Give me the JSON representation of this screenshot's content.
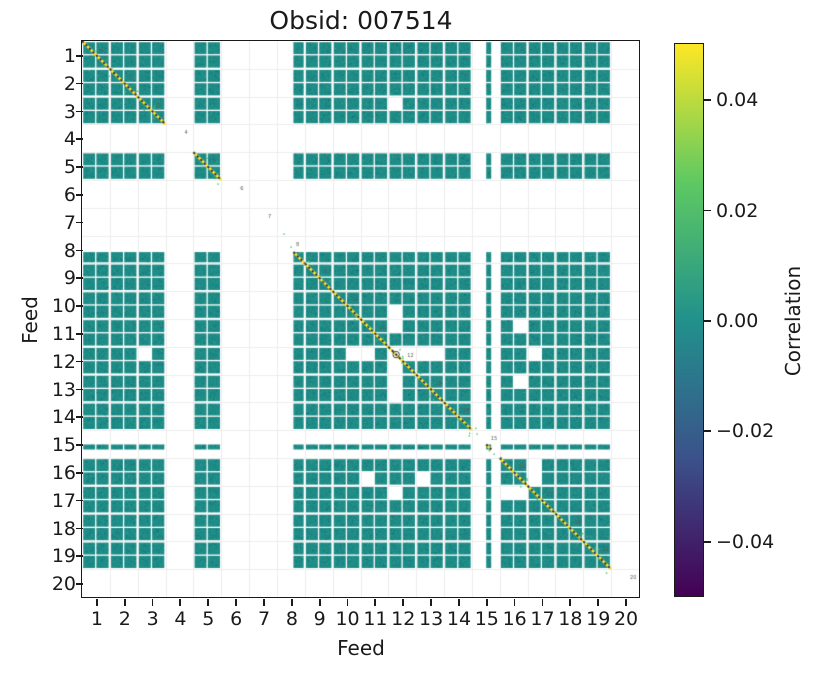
{
  "chart_data": {
    "type": "heatmap",
    "title": "Obsid: 007514",
    "xlabel": "Feed",
    "ylabel": "Feed",
    "feeds": [
      1,
      2,
      3,
      4,
      5,
      6,
      7,
      8,
      9,
      10,
      11,
      12,
      13,
      14,
      15,
      16,
      17,
      18,
      19,
      20
    ],
    "active_feeds": [
      1,
      2,
      3,
      5,
      8,
      9,
      10,
      11,
      12,
      13,
      14,
      15,
      16,
      17,
      18,
      19
    ],
    "masked_feeds": [
      4,
      6,
      7,
      20
    ],
    "partial_feeds": [
      15
    ],
    "late_start_feeds": [
      8
    ],
    "diag_labels": [
      "1",
      "2",
      "3",
      "4",
      "5",
      "6",
      "7",
      "8",
      "9",
      "10",
      "11",
      "12",
      "13",
      "14",
      "15",
      "16",
      "17",
      "18",
      "19",
      "20"
    ],
    "masked_cells": [
      [
        4,
        22
      ],
      [
        22,
        4
      ],
      [
        19,
        22
      ],
      [
        22,
        19
      ],
      [
        20,
        22
      ],
      [
        22,
        20
      ],
      [
        22,
        22
      ],
      [
        22,
        23
      ],
      [
        23,
        22
      ],
      [
        24,
        22
      ],
      [
        22,
        24
      ],
      [
        22,
        25
      ],
      [
        25,
        22
      ],
      [
        31,
        20
      ],
      [
        20,
        31
      ],
      [
        31,
        24
      ],
      [
        24,
        31
      ],
      [
        32,
        22
      ],
      [
        22,
        32
      ],
      [
        31,
        32
      ],
      [
        32,
        31
      ],
      [
        32,
        30
      ],
      [
        30,
        32
      ]
    ],
    "colors": {
      "cell": "#1e8c87",
      "diagonal": "#fde725",
      "diagonal_dots": "#2c2e60",
      "feed_grid": "#ededed",
      "speckle_green": "#40bd72",
      "spine": "#1a1a1a",
      "tiny_label": "#5a5a5a"
    },
    "colorbar": {
      "label": "Correlation",
      "vmin": -0.05,
      "vmax": 0.05,
      "colormap": "viridis",
      "gradient_stops": [
        "#440154",
        "#3b528b",
        "#21918c",
        "#5ec962",
        "#fde725"
      ],
      "ticks": [
        {
          "label": "0.04",
          "value": 0.04
        },
        {
          "label": "0.02",
          "value": 0.02
        },
        {
          "label": "0.00",
          "value": 0.0
        },
        {
          "label": "−0.02",
          "value": -0.02
        },
        {
          "label": "−0.04",
          "value": -0.04
        }
      ]
    }
  }
}
